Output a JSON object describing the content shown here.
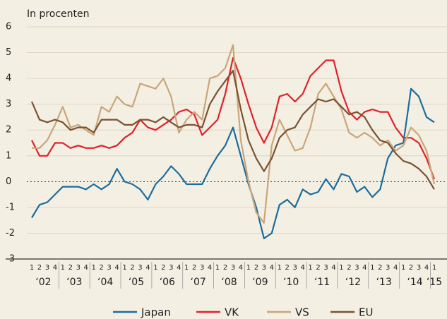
{
  "chart_data": {
    "type": "line",
    "title": "In procenten",
    "categories": [
      "1",
      "2",
      "3",
      "4",
      "1",
      "2",
      "3",
      "4",
      "1",
      "2",
      "3",
      "4",
      "1",
      "2",
      "3",
      "4",
      "1",
      "2",
      "3",
      "4",
      "1",
      "2",
      "3",
      "4",
      "1",
      "2",
      "3",
      "4",
      "1",
      "2",
      "3",
      "4",
      "1",
      "2",
      "3",
      "4",
      "1",
      "2",
      "3",
      "4",
      "1",
      "2",
      "3",
      "4",
      "1",
      "2",
      "3",
      "4",
      "1",
      "2",
      "3",
      "4",
      "1"
    ],
    "year_labels": [
      "‘02",
      "‘03",
      "‘04",
      "‘05",
      "‘06",
      "‘07",
      "‘08",
      "‘09",
      "‘10",
      "‘11",
      "‘12",
      "‘13",
      "‘14",
      "‘15"
    ],
    "ylim": [
      -3,
      6
    ],
    "yticks": [
      -3,
      -2,
      -1,
      0,
      1,
      2,
      3,
      4,
      5,
      6
    ],
    "grid": true,
    "legend": "bottom",
    "series": [
      {
        "name": "Japan",
        "color": "#1b6d9c",
        "values": [
          -1.4,
          -0.9,
          -0.8,
          -0.5,
          -0.2,
          -0.2,
          -0.2,
          -0.3,
          -0.1,
          -0.3,
          -0.1,
          0.5,
          0.0,
          -0.1,
          -0.3,
          -0.7,
          -0.1,
          0.2,
          0.6,
          0.3,
          -0.1,
          -0.1,
          -0.1,
          0.5,
          1.0,
          1.4,
          2.1,
          1.0,
          -0.1,
          -1.0,
          -2.2,
          -2.0,
          -0.9,
          -0.7,
          -1.0,
          -0.3,
          -0.5,
          -0.4,
          0.1,
          -0.3,
          0.3,
          0.2,
          -0.4,
          -0.2,
          -0.6,
          -0.3,
          0.9,
          1.4,
          1.5,
          3.6,
          3.3,
          2.5,
          2.3
        ]
      },
      {
        "name": "VK",
        "color": "#e1212b",
        "values": [
          1.6,
          1.0,
          1.0,
          1.5,
          1.5,
          1.3,
          1.4,
          1.3,
          1.3,
          1.4,
          1.3,
          1.4,
          1.7,
          1.9,
          2.4,
          2.1,
          2.0,
          2.2,
          2.4,
          2.7,
          2.8,
          2.6,
          1.8,
          2.1,
          2.4,
          3.4,
          4.8,
          4.0,
          3.0,
          2.1,
          1.5,
          2.1,
          3.3,
          3.4,
          3.1,
          3.4,
          4.1,
          4.4,
          4.7,
          4.7,
          3.5,
          2.7,
          2.4,
          2.7,
          2.8,
          2.7,
          2.7,
          2.1,
          1.7,
          1.7,
          1.5,
          0.9,
          0.1
        ]
      },
      {
        "name": "VS",
        "color": "#c9a679",
        "values": [
          1.3,
          1.3,
          1.6,
          2.2,
          2.9,
          2.1,
          2.2,
          2.0,
          1.8,
          2.9,
          2.7,
          3.3,
          3.0,
          2.9,
          3.8,
          3.7,
          3.6,
          4.0,
          3.3,
          1.9,
          2.4,
          2.7,
          2.4,
          4.0,
          4.1,
          4.4,
          5.3,
          1.6,
          0.0,
          -1.2,
          -1.6,
          1.4,
          2.4,
          1.8,
          1.2,
          1.3,
          2.1,
          3.4,
          3.8,
          3.3,
          2.8,
          1.9,
          1.7,
          1.9,
          1.7,
          1.4,
          1.6,
          1.2,
          1.4,
          2.1,
          1.8,
          1.2,
          -0.1
        ]
      },
      {
        "name": "EU",
        "color": "#7b5232",
        "values": [
          3.1,
          2.4,
          2.3,
          2.4,
          2.3,
          2.0,
          2.1,
          2.1,
          1.9,
          2.4,
          2.4,
          2.4,
          2.2,
          2.2,
          2.4,
          2.4,
          2.3,
          2.5,
          2.3,
          2.1,
          2.2,
          2.2,
          2.1,
          3.0,
          3.5,
          3.9,
          4.3,
          2.8,
          1.6,
          0.9,
          0.4,
          0.9,
          1.7,
          2.0,
          2.1,
          2.6,
          2.9,
          3.2,
          3.1,
          3.2,
          2.9,
          2.6,
          2.7,
          2.5,
          2.0,
          1.6,
          1.5,
          1.1,
          0.8,
          0.7,
          0.5,
          0.2,
          -0.3
        ]
      }
    ]
  }
}
